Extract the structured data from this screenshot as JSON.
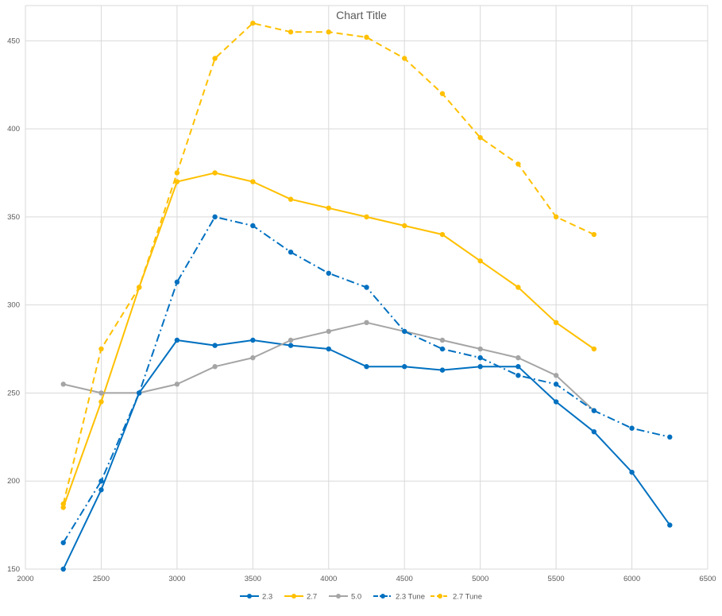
{
  "chart_data": {
    "type": "line",
    "title": "Chart Title",
    "xlabel": "",
    "ylabel": "",
    "xlim": [
      2000,
      6500
    ],
    "ylim": [
      150,
      470
    ],
    "x_ticks": [
      2000,
      2500,
      3000,
      3500,
      4000,
      4500,
      5000,
      5500,
      6000,
      6500
    ],
    "y_ticks": [
      150,
      200,
      250,
      300,
      350,
      400,
      450
    ],
    "grid": true,
    "legend_position": "bottom",
    "series": [
      {
        "name": "2.3",
        "color": "#0070C0",
        "dash": "solid",
        "points": [
          [
            2250,
            150
          ],
          [
            2500,
            195
          ],
          [
            2750,
            250
          ],
          [
            3000,
            280
          ],
          [
            3250,
            277
          ],
          [
            3500,
            280
          ],
          [
            3750,
            277
          ],
          [
            4000,
            275
          ],
          [
            4250,
            265
          ],
          [
            4500,
            265
          ],
          [
            4750,
            263
          ],
          [
            5000,
            265
          ],
          [
            5250,
            265
          ],
          [
            5500,
            245
          ],
          [
            5750,
            228
          ],
          [
            6000,
            205
          ],
          [
            6250,
            175
          ]
        ]
      },
      {
        "name": "2.7",
        "color": "#FFC000",
        "dash": "solid",
        "points": [
          [
            2250,
            185
          ],
          [
            2500,
            245
          ],
          [
            2750,
            310
          ],
          [
            3000,
            370
          ],
          [
            3250,
            375
          ],
          [
            3500,
            370
          ],
          [
            3750,
            360
          ],
          [
            4000,
            355
          ],
          [
            4250,
            350
          ],
          [
            4500,
            345
          ],
          [
            4750,
            340
          ],
          [
            5000,
            325
          ],
          [
            5250,
            310
          ],
          [
            5500,
            290
          ],
          [
            5750,
            275
          ]
        ]
      },
      {
        "name": "5.0",
        "color": "#A5A5A5",
        "dash": "solid",
        "points": [
          [
            2250,
            255
          ],
          [
            2500,
            250
          ],
          [
            2750,
            250
          ],
          [
            3000,
            255
          ],
          [
            3250,
            265
          ],
          [
            3500,
            270
          ],
          [
            3750,
            280
          ],
          [
            4000,
            285
          ],
          [
            4250,
            290
          ],
          [
            4500,
            285
          ],
          [
            4750,
            280
          ],
          [
            5000,
            275
          ],
          [
            5250,
            270
          ],
          [
            5500,
            260
          ],
          [
            5750,
            240
          ]
        ]
      },
      {
        "name": "2.3 Tune",
        "color": "#0070C0",
        "dash": "dashdot",
        "points": [
          [
            2250,
            165
          ],
          [
            2500,
            200
          ],
          [
            2750,
            250
          ],
          [
            3000,
            313
          ],
          [
            3250,
            350
          ],
          [
            3500,
            345
          ],
          [
            3750,
            330
          ],
          [
            4000,
            318
          ],
          [
            4250,
            310
          ],
          [
            4500,
            285
          ],
          [
            4750,
            275
          ],
          [
            5000,
            270
          ],
          [
            5250,
            260
          ],
          [
            5500,
            255
          ],
          [
            5750,
            240
          ],
          [
            6000,
            230
          ],
          [
            6250,
            225
          ]
        ]
      },
      {
        "name": "2.7 Tune",
        "color": "#FFC000",
        "dash": "dash",
        "points": [
          [
            2250,
            187
          ],
          [
            2500,
            275
          ],
          [
            2750,
            310
          ],
          [
            3000,
            375
          ],
          [
            3250,
            440
          ],
          [
            3500,
            460
          ],
          [
            3750,
            455
          ],
          [
            4000,
            455
          ],
          [
            4250,
            452
          ],
          [
            4500,
            440
          ],
          [
            4750,
            420
          ],
          [
            5000,
            395
          ],
          [
            5250,
            380
          ],
          [
            5500,
            350
          ],
          [
            5750,
            340
          ]
        ]
      }
    ]
  }
}
